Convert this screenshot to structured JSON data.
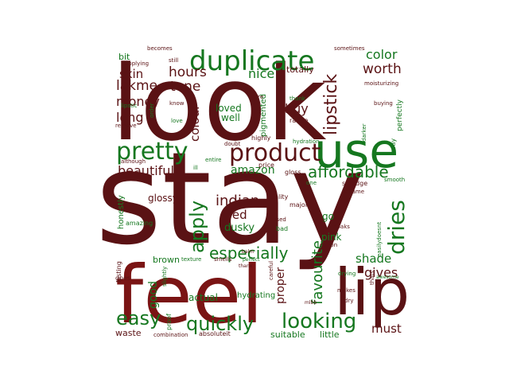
{
  "colors": {
    "red": "#5a1214",
    "red2": "#7a1414",
    "red3": "#6b1b1d",
    "green": "#15771f",
    "green2": "#1f8a2b",
    "background": "#ffffff"
  },
  "words": [
    {
      "text": "stay",
      "color": "red"
    },
    {
      "text": "look",
      "color": "red"
    },
    {
      "text": "feel",
      "color": "red2"
    },
    {
      "text": "lip",
      "color": "red"
    },
    {
      "text": "use",
      "color": "green"
    },
    {
      "text": "duplicate",
      "color": "green"
    },
    {
      "text": "product",
      "color": "red"
    },
    {
      "text": "pretty",
      "color": "green"
    },
    {
      "text": "lipstick",
      "color": "red"
    },
    {
      "text": "affordable",
      "color": "green"
    },
    {
      "text": "dries",
      "color": "green"
    },
    {
      "text": "looking",
      "color": "green"
    },
    {
      "text": "quickly",
      "color": "green"
    },
    {
      "text": "easy",
      "color": "green"
    },
    {
      "text": "apply",
      "color": "green"
    },
    {
      "text": "especially",
      "color": "green"
    },
    {
      "text": "favourite",
      "color": "green"
    },
    {
      "text": "beautiful",
      "color": "red"
    },
    {
      "text": "amazon",
      "color": "green"
    },
    {
      "text": "indian",
      "color": "red"
    },
    {
      "text": "hours",
      "color": "red"
    },
    {
      "text": "lakme",
      "color": "red"
    },
    {
      "text": "money",
      "color": "red"
    },
    {
      "text": "long",
      "color": "red"
    },
    {
      "text": "tone",
      "color": "red"
    },
    {
      "text": "skin",
      "color": "red"
    },
    {
      "text": "nice",
      "color": "green"
    },
    {
      "text": "colour",
      "color": "red"
    },
    {
      "text": "buy",
      "color": "red"
    },
    {
      "text": "worth",
      "color": "red"
    },
    {
      "text": "color",
      "color": "green"
    },
    {
      "text": "shade",
      "color": "green"
    },
    {
      "text": "gives",
      "color": "red"
    },
    {
      "text": "must",
      "color": "red"
    },
    {
      "text": "red",
      "color": "red"
    },
    {
      "text": "good",
      "color": "green"
    },
    {
      "text": "proper",
      "color": "red"
    },
    {
      "text": "glossy",
      "color": "red"
    },
    {
      "text": "dusky",
      "color": "green"
    },
    {
      "text": "actual",
      "color": "green"
    },
    {
      "text": "brown",
      "color": "green"
    },
    {
      "text": "loved",
      "color": "green"
    },
    {
      "text": "well",
      "color": "green"
    },
    {
      "text": "pigmented",
      "color": "green"
    },
    {
      "text": "bit",
      "color": "green"
    },
    {
      "text": "totally",
      "color": "red"
    },
    {
      "text": "go",
      "color": "green"
    },
    {
      "text": "pink",
      "color": "green"
    },
    {
      "text": "honestly",
      "color": "green"
    },
    {
      "text": "waste",
      "color": "red"
    },
    {
      "text": "suitable",
      "color": "green"
    },
    {
      "text": "little",
      "color": "green"
    },
    {
      "text": "hydrating",
      "color": "green"
    },
    {
      "text": "highly",
      "color": "red"
    },
    {
      "text": "range",
      "color": "red"
    },
    {
      "text": "rare",
      "color": "red"
    },
    {
      "text": "thank",
      "color": "green"
    },
    {
      "text": "doubt",
      "color": "red"
    },
    {
      "text": "price",
      "color": "red"
    },
    {
      "text": "gloss",
      "color": "red"
    },
    {
      "text": "drawback",
      "color": "red"
    },
    {
      "text": "quality",
      "color": "red"
    },
    {
      "text": "major",
      "color": "red"
    },
    {
      "text": "used",
      "color": "red"
    },
    {
      "text": "bad",
      "color": "green"
    },
    {
      "text": "easilydoesnt",
      "color": "green"
    },
    {
      "text": "thats",
      "color": "red"
    },
    {
      "text": "one",
      "color": "green"
    },
    {
      "text": "smudge",
      "color": "red"
    },
    {
      "text": "became",
      "color": "red"
    },
    {
      "text": "smooth",
      "color": "green"
    },
    {
      "text": "soaks",
      "color": "red"
    },
    {
      "text": "option",
      "color": "red"
    },
    {
      "text": "perfectly",
      "color": "green"
    },
    {
      "text": "away",
      "color": "green"
    },
    {
      "text": "darker",
      "color": "green"
    },
    {
      "text": "buying",
      "color": "red"
    },
    {
      "text": "moisturizing",
      "color": "red"
    },
    {
      "text": "hydration",
      "color": "green"
    },
    {
      "text": "sometimes",
      "color": "red"
    },
    {
      "text": "becomes",
      "color": "red"
    },
    {
      "text": "still",
      "color": "red"
    },
    {
      "text": "applying",
      "color": "red"
    },
    {
      "text": "lipstic",
      "color": "green"
    },
    {
      "text": "remove",
      "color": "red"
    },
    {
      "text": "order",
      "color": "green"
    },
    {
      "text": "love",
      "color": "green"
    },
    {
      "text": "know",
      "color": "red"
    },
    {
      "text": "although",
      "color": "red"
    },
    {
      "text": "entire",
      "color": "green"
    },
    {
      "text": "ill",
      "color": "green"
    },
    {
      "text": "amazing",
      "color": "green"
    },
    {
      "text": "lasting",
      "color": "red"
    },
    {
      "text": "goes",
      "color": "red"
    },
    {
      "text": "texture",
      "color": "green"
    },
    {
      "text": "smells",
      "color": "red"
    },
    {
      "text": "perfect",
      "color": "green"
    },
    {
      "text": "thanx",
      "color": "red"
    },
    {
      "text": "balm",
      "color": "red"
    },
    {
      "text": "careful",
      "color": "red"
    },
    {
      "text": "slightly",
      "color": "green"
    },
    {
      "text": "proof",
      "color": "green"
    },
    {
      "text": "combination",
      "color": "red"
    },
    {
      "text": "absoluteit",
      "color": "red"
    },
    {
      "text": "mlbb",
      "color": "red"
    },
    {
      "text": "drying",
      "color": "green"
    },
    {
      "text": "awesome",
      "color": "green"
    },
    {
      "text": "makes",
      "color": "red"
    },
    {
      "text": "dry",
      "color": "red"
    }
  ]
}
